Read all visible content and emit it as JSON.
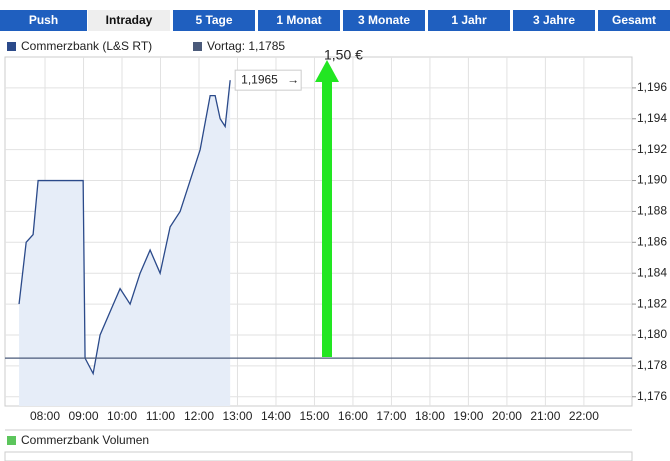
{
  "tabs": [
    "Push",
    "Intraday",
    "5 Tage",
    "1 Monat",
    "3 Monate",
    "1 Jahr",
    "3 Jahre",
    "Gesamt"
  ],
  "active_tab": "Intraday",
  "chart_data": {
    "type": "line",
    "x": [
      7.325,
      7.51,
      7.69,
      7.82,
      8.99,
      9.04,
      9.25,
      9.43,
      9.69,
      9.95,
      10.21,
      10.47,
      10.73,
      10.99,
      11.25,
      11.51,
      11.77,
      12.03,
      12.29,
      12.42,
      12.55,
      12.68,
      12.81
    ],
    "series": [
      {
        "name": "Commerzbank (L&S RT)",
        "color": "#2b4a8a",
        "fill": "#e6edf8",
        "values": [
          1.182,
          1.186,
          1.1865,
          1.19,
          1.19,
          1.1785,
          1.1775,
          1.18,
          1.1815,
          1.183,
          1.182,
          1.184,
          1.1855,
          1.184,
          1.187,
          1.188,
          1.19,
          1.192,
          1.1955,
          1.1955,
          1.194,
          1.1935,
          1.1965
        ]
      }
    ],
    "reference": {
      "name": "Vortag: 1,1785",
      "value": 1.1785,
      "color": "#4a5a7a"
    },
    "annotations": [
      {
        "label": "1,1965",
        "value": 1.1965
      },
      {
        "text": "1,50 €"
      }
    ],
    "volume_legend": {
      "name": "Commerzbank Volumen",
      "color": "#5cc55c"
    },
    "xlim": [
      6.96,
      23.25
    ],
    "xticks": [
      {
        "value": 8,
        "label": "08:00"
      },
      {
        "value": 9,
        "label": "09:00"
      },
      {
        "value": 10,
        "label": "10:00"
      },
      {
        "value": 11,
        "label": "11:00"
      },
      {
        "value": 12,
        "label": "12:00"
      },
      {
        "value": 13,
        "label": "13:00"
      },
      {
        "value": 14,
        "label": "14:00"
      },
      {
        "value": 15,
        "label": "15:00"
      },
      {
        "value": 16,
        "label": "16:00"
      },
      {
        "value": 17,
        "label": "17:00"
      },
      {
        "value": 18,
        "label": "18:00"
      },
      {
        "value": 19,
        "label": "19:00"
      },
      {
        "value": 20,
        "label": "20:00"
      },
      {
        "value": 21,
        "label": "21:00"
      },
      {
        "value": 22,
        "label": "22:00"
      }
    ],
    "ylim": [
      1.1754,
      1.198
    ],
    "yticks": [
      {
        "value": 1.176,
        "label": "1,176"
      },
      {
        "value": 1.178,
        "label": "1,178"
      },
      {
        "value": 1.18,
        "label": "1,180"
      },
      {
        "value": 1.182,
        "label": "1,182"
      },
      {
        "value": 1.184,
        "label": "1,184"
      },
      {
        "value": 1.186,
        "label": "1,186"
      },
      {
        "value": 1.188,
        "label": "1,188"
      },
      {
        "value": 1.19,
        "label": "1,190"
      },
      {
        "value": 1.192,
        "label": "1,192"
      },
      {
        "value": 1.194,
        "label": "1,194"
      },
      {
        "value": 1.196,
        "label": "1,196"
      }
    ],
    "grid": true
  }
}
